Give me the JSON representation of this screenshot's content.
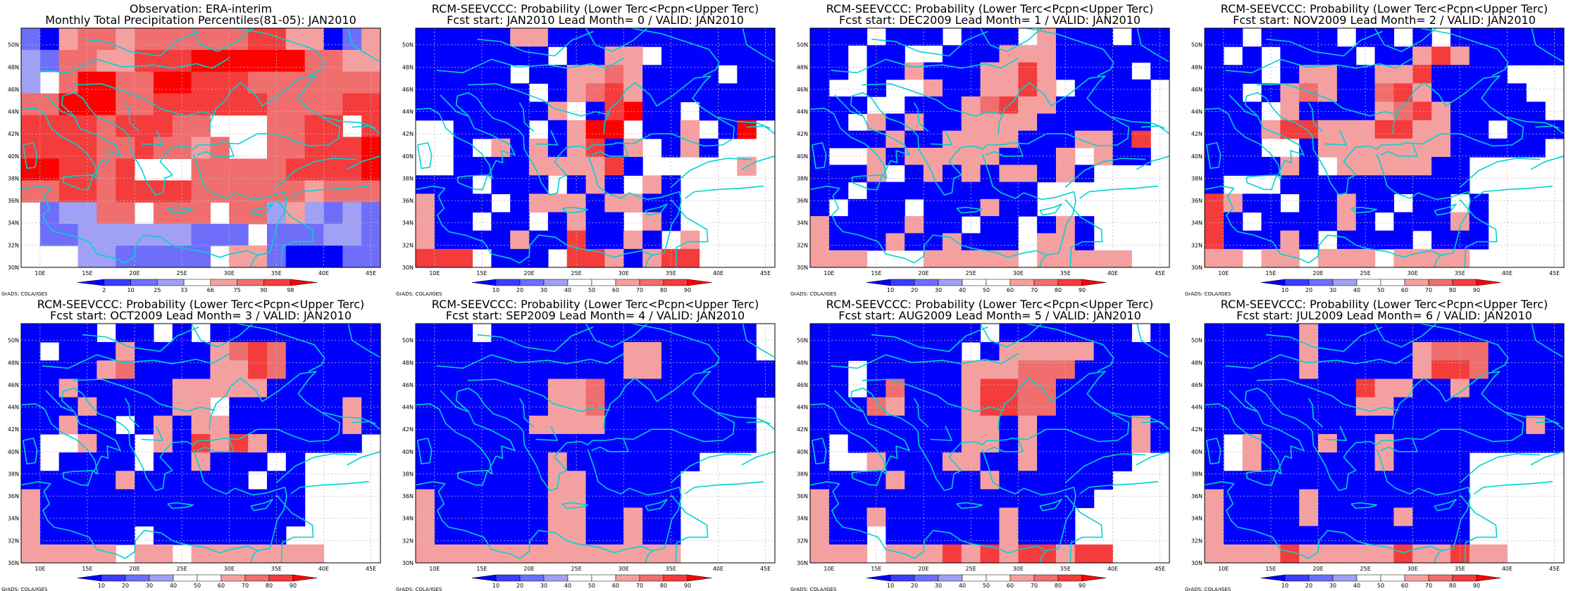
{
  "colors": {
    "blue_strong": "#0000ff",
    "blue_mid": "#3c3cff",
    "blue_light": "#6e6efa",
    "blue_pale": "#a0a0f5",
    "pink_light": "#f5a0a0",
    "red_light": "#f06e6e",
    "red_mid": "#f53c3c",
    "red_strong": "#ff0000",
    "coast": "#00d2d2",
    "grid": "#bdbdbd"
  },
  "lon_ticks": [
    "10E",
    "15E",
    "20E",
    "25E",
    "30E",
    "35E",
    "40E",
    "45E"
  ],
  "lat_ticks": [
    "30N",
    "32N",
    "34N",
    "36N",
    "38N",
    "40N",
    "42N",
    "44N",
    "46N",
    "48N",
    "50N"
  ],
  "credit": "GrADS: COLA/IGES",
  "colorbars": {
    "obs": [
      "2",
      "10",
      "25",
      "33",
      "66",
      "75",
      "90",
      "98"
    ],
    "prob": [
      "10",
      "20",
      "30",
      "40",
      "50",
      "60",
      "70",
      "80",
      "90"
    ]
  },
  "palette_codes": {
    "B": "blue_strong",
    "M": "blue_mid",
    "L": "blue_light",
    "P": "blue_pale",
    ".": "white",
    "k": "pink_light",
    "r": "red_light",
    "R": "red_mid",
    "X": "red_strong"
  },
  "panels": [
    {
      "title1": "Observation: ERA-interim",
      "title2": "Monthly Total Precipitation Percentiles(81-05): JAN2010",
      "colorbar": "obs",
      "grid": [
        "LBkrrkrrrrrrRRkkBLk",
        "PLrrkkRRRXXXXXXrrkk",
        "P.rXXrrXXRRRrrrrrrr",
        "rrXXXrrRRRRRRrrrrRR",
        "RRRRrRRRrr...rrRR.R",
        "RRRRrrRrrkr..rrRRRX",
        "XXRRrR...rrrrrRRRRX",
        "rrRRrRRRRrrrrrrkrrr",
        ".LPPrr.rrr.rrPkPLPL",
        ".LLPPPPPPLLL.LLLPPL",
        "...PPLLLLL.kkLBBBLL"
      ]
    },
    {
      "title1": "RCM-SEEVCCC: Probability (Lower Terc<Pcpn<Upper Terc)",
      "title2": "Fcst start: JAN2010   Lead Month= 0 / VALID: JAN2010",
      "colorbar": "prob",
      "grid": [
        "BBBBBkkBBBBBBBBBBBB",
        "BBBBBBB.BBkk.BBBBBB",
        "BBBBB.BBkkrkBBBB.BB",
        "BBBBBB.BkrRkBBBBBBB",
        "BBBBBBBk.BRXBB.BBBB",
        "..BBBB.BkXX.BBk.BX.",
        "..B.kBkBkRBk.BkB...",
        "..BBBBkkkkRB.....k.",
        "BBB.BBB.BkB.kB.....",
        "kBBB.BkkkBkkBB.....",
        "kBB.BB.BkBB.kB.....",
        "kBBBBkBBRBBkB.k....",
        "RRR.BBB.RRkBkRR...."
      ]
    },
    {
      "title1": "RCM-SEEVCCC: Probability (Lower Terc<Pcpn<Upper Terc)",
      "title2": "Fcst start: DEC2009   Lead Month= 1 / VALID: JAN2010",
      "colorbar": "prob",
      "grid": [
        "BBB.BBB.BBB.kBBB.BB",
        "BB.BB..BBBkkkBBBBBB",
        "BB.BBkBBBkkRkBBBB.B",
        "B..B..kBBkkRk.BBBB.",
        "BBB..BBBkrRkkBBBBB.",
        "BB.kBkBBkkkkBBBBBB.",
        "BBBBkBBkkkkBBBkkBR.",
        "B..kBkkkkkBBBk.kBB.",
        "BBBk.BkBkBkkBkB....",
        "BB.BBBBBBBBB.......",
        "B.BBB.BBBkBB.......",
        "kBBBBkBB.BB.BkB....",
        "kBBBkBBkBBB.kkB....",
        "kkk...kkkkk.kkkkk.."
      ]
    },
    {
      "title1": "RCM-SEEVCCC: Probability (Lower Terc<Pcpn<Upper Terc)",
      "title2": "Fcst start: NOV2009   Lead Month= 2 / VALID: JAN2010",
      "colorbar": "prob",
      "grid": [
        "BB.BBBB.BB.B.BBBBBB",
        "B.B.BBBB.BBkRkBBBBB",
        "BBB.BkkBBkkRBBBB...",
        "BB.BkrkBBrRkBBBBB..",
        "BBB.kBBBBkrRkBBBBB.",
        "BBBkRRkkkRRkkBB.BBB",
        "BBB..BkkkkkkkBBBBB.",
        "BBBBkB.kkkkkBB.....",
        "B...BBBBBBBBBB.....",
        "RkBB.BBkBB.BB.B....",
        "RB.BBBBkB.BBBkB....",
        "RBBBkB.BBBB.BBB....",
        "kk.kk.kkk.kkkk....."
      ]
    },
    {
      "title1": "RCM-SEEVCCC: Probability (Lower Terc<Pcpn<Upper Terc)",
      "title2": "Fcst start: OCT2009   Lead Month= 3 / VALID: JAN2010",
      "colorbar": "prob",
      "grid": [
        "BBBB.BB.B.BBBBBBBBB",
        "B.BBBkBBBBkrRrBBBBB",
        "BBBBkrBBBBkkRrBBBBB",
        "BBkBBBBBkkkkkBBBBBB",
        "BBBkBBBBkk.BBBBBBkB",
        "BBkBB.BkBkkBBBBBBkB",
        "B..kBB.kBRkRkBBBBB.",
        "B.BBBB.BBkBBB.B....",
        "BBBBBkBBBBBB.BB....",
        "kBBBBBBBBBBBBBB....",
        "kBBBBBBBBBBBBBB....",
        "kBBBBB.BBBBBBB.....",
        "kkkkk.kk.kkkkkkk..."
      ]
    },
    {
      "title1": "RCM-SEEVCCC: Probability (Lower Terc<Pcpn<Upper Terc)",
      "title2": "Fcst start: SEP2009   Lead Month= 4 / VALID: JAN2010",
      "colorbar": "prob",
      "grid": [
        "BBB.BBBBBBBBBBBBBB.",
        "BBBBBBBBBBBkkBBBBB.",
        "BBBBBBBBBBBkkBBBBBB",
        "BBBBBBBkkrBBBBBBBBB",
        "BBBBBBBkkrBBBBBBBB.",
        "BBBBBBkkkkBBBBBBBB.",
        "BBBBBBBBBBBBBBBBBB.",
        "BBBBBBBkBBBBBBB....",
        "BBBBBBBkkBBBBB.....",
        "kBBBBBBkkBBBBB.....",
        "kBBBBBBkkBBkBB.....",
        "kBBBBBBkkBBkBB.....",
        "kkkkkkkkkkkkkk....."
      ]
    },
    {
      "title1": "RCM-SEEVCCC: Probability (Lower Terc<Pcpn<Upper Terc)",
      "title2": "Fcst start: AUG2009   Lead Month= 5 / VALID: JAN2010",
      "colorbar": "prob",
      "grid": [
        "BBBBBBBBB.BBBBBBB.B",
        "BBBBBBBB.BkkkkkBBBB",
        "BB.BBBBBkkkrrrBBBBB",
        "BB.BrBBBkRRrrBBBBBB",
        "BBBrkBBBkRRrrBBBBBB",
        "BBBBBBBBkkBkBBBBBkB",
        "B.BBBBBBkkBkBBBBBkB",
        "B..kBBBkkBBkBBBBB..",
        "BBBBkBBBBkBBBBBB...",
        "kBBBBBBBBBBBBBB....",
        "kBBkBBBBBBkBBB.....",
        "kBB.BBBBBBkBBB.....",
        "kkk.kkkRkRkRRkRR..."
      ]
    },
    {
      "title1": "RCM-SEEVCCC: Probability (Lower Terc<Pcpn<Upper Terc)",
      "title2": "Fcst start: JUL2009   Lead Month= 6 / VALID: JAN2010",
      "colorbar": "prob",
      "grid": [
        "BBBBBkBBBBBBBBBBBBB",
        "BBBBBkBBBBBkrrrBBBB",
        "BBBBBkBBBBBkRRrBBBB",
        "BBBBBBBBRkkBBkBBBBB",
        "BBBBBBBBkkBBBBBBBBB",
        "BBBBBBBBBBBBBBBBBkB",
        "B.kBBBkBBkBBBBBBBBB",
        "B.kBBBBBBkBBBB.....",
        "BBBBBBBBBBBBBB.....",
        "kBBBBkBBBBBBBB.....",
        "kBBBBkBBBBkBBB.....",
        "kBBBBBBBBBBBBB.....",
        "kkkkRkkkkkRkkRkk..."
      ]
    }
  ]
}
